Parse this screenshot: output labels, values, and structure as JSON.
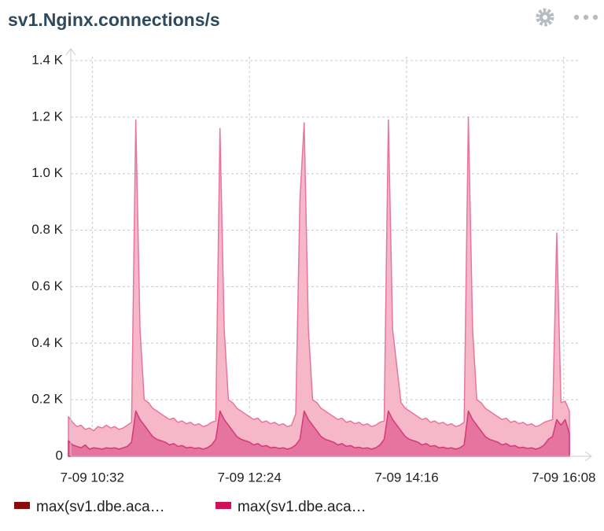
{
  "chart_data": {
    "type": "area",
    "title": "sv1.Nginx.connections/s",
    "x": [
      "7-09 10:15",
      "7-09 10:18",
      "7-09 10:21",
      "7-09 10:24",
      "7-09 10:27",
      "7-09 10:30",
      "7-09 10:33",
      "7-09 10:36",
      "7-09 10:39",
      "7-09 10:42",
      "7-09 10:45",
      "7-09 10:48",
      "7-09 10:51",
      "7-09 10:54",
      "7-09 10:57",
      "7-09 11:00",
      "7-09 11:03",
      "7-09 11:06",
      "7-09 11:09",
      "7-09 11:12",
      "7-09 11:15",
      "7-09 11:18",
      "7-09 11:21",
      "7-09 11:24",
      "7-09 11:27",
      "7-09 11:30",
      "7-09 11:33",
      "7-09 11:36",
      "7-09 11:39",
      "7-09 11:42",
      "7-09 11:45",
      "7-09 11:48",
      "7-09 11:51",
      "7-09 11:54",
      "7-09 11:57",
      "7-09 12:00",
      "7-09 12:03",
      "7-09 12:06",
      "7-09 12:09",
      "7-09 12:12",
      "7-09 12:15",
      "7-09 12:18",
      "7-09 12:21",
      "7-09 12:24",
      "7-09 12:27",
      "7-09 12:30",
      "7-09 12:33",
      "7-09 12:36",
      "7-09 12:39",
      "7-09 12:42",
      "7-09 12:45",
      "7-09 12:48",
      "7-09 12:51",
      "7-09 12:54",
      "7-09 12:57",
      "7-09 13:00",
      "7-09 13:03",
      "7-09 13:06",
      "7-09 13:09",
      "7-09 13:12",
      "7-09 13:15",
      "7-09 13:18",
      "7-09 13:21",
      "7-09 13:24",
      "7-09 13:27",
      "7-09 13:30",
      "7-09 13:33",
      "7-09 13:36",
      "7-09 13:39",
      "7-09 13:42",
      "7-09 13:45",
      "7-09 13:48",
      "7-09 13:51",
      "7-09 13:54",
      "7-09 13:57",
      "7-09 14:00",
      "7-09 14:03",
      "7-09 14:06",
      "7-09 14:09",
      "7-09 14:12",
      "7-09 14:15",
      "7-09 14:18",
      "7-09 14:21",
      "7-09 14:24",
      "7-09 14:27",
      "7-09 14:30",
      "7-09 14:33",
      "7-09 14:36",
      "7-09 14:39",
      "7-09 14:42",
      "7-09 14:45",
      "7-09 14:48",
      "7-09 14:51",
      "7-09 14:54",
      "7-09 14:57",
      "7-09 15:00",
      "7-09 15:03",
      "7-09 15:06",
      "7-09 15:09",
      "7-09 15:12",
      "7-09 15:15",
      "7-09 15:18",
      "7-09 15:21",
      "7-09 15:24",
      "7-09 15:27",
      "7-09 15:30",
      "7-09 15:33",
      "7-09 15:36",
      "7-09 15:39",
      "7-09 15:42",
      "7-09 15:45",
      "7-09 15:48",
      "7-09 15:51",
      "7-09 15:54",
      "7-09 15:57",
      "7-09 16:00",
      "7-09 16:03",
      "7-09 16:06",
      "7-09 16:09",
      "7-09 16:12"
    ],
    "series": [
      {
        "name": "max(sv1.dbe.aca…",
        "color": "#8b0a0a",
        "values": [
          140,
          120,
          105,
          110,
          95,
          100,
          90,
          105,
          100,
          110,
          100,
          105,
          95,
          100,
          110,
          120,
          1190,
          450,
          200,
          190,
          170,
          160,
          150,
          140,
          130,
          135,
          120,
          125,
          115,
          120,
          110,
          115,
          105,
          110,
          120,
          125,
          1160,
          450,
          200,
          190,
          170,
          160,
          150,
          140,
          130,
          135,
          120,
          125,
          115,
          120,
          110,
          115,
          105,
          110,
          150,
          910,
          1180,
          450,
          200,
          190,
          170,
          160,
          150,
          140,
          130,
          135,
          120,
          125,
          115,
          120,
          110,
          115,
          105,
          110,
          120,
          125,
          1190,
          450,
          320,
          190,
          170,
          160,
          150,
          140,
          130,
          135,
          120,
          125,
          115,
          120,
          110,
          115,
          105,
          110,
          120,
          1200,
          450,
          200,
          190,
          170,
          160,
          150,
          140,
          130,
          135,
          120,
          125,
          115,
          120,
          110,
          115,
          105,
          110,
          120,
          125,
          130,
          790,
          190,
          195,
          160
        ]
      },
      {
        "name": "max(sv1.dbe.aca…",
        "color": "#d0105a",
        "values": [
          55,
          40,
          35,
          30,
          40,
          25,
          30,
          28,
          25,
          30,
          28,
          30,
          25,
          30,
          35,
          50,
          160,
          130,
          110,
          90,
          70,
          60,
          55,
          50,
          40,
          45,
          35,
          38,
          30,
          32,
          28,
          30,
          25,
          30,
          40,
          60,
          160,
          130,
          110,
          90,
          70,
          60,
          55,
          50,
          40,
          45,
          35,
          38,
          30,
          32,
          28,
          30,
          25,
          30,
          40,
          60,
          160,
          130,
          110,
          90,
          70,
          60,
          55,
          50,
          40,
          45,
          35,
          38,
          30,
          32,
          28,
          30,
          25,
          30,
          40,
          60,
          160,
          130,
          110,
          90,
          70,
          60,
          55,
          50,
          40,
          45,
          35,
          38,
          30,
          32,
          28,
          30,
          25,
          30,
          40,
          160,
          130,
          110,
          90,
          70,
          60,
          55,
          50,
          40,
          45,
          35,
          38,
          30,
          32,
          28,
          30,
          25,
          30,
          40,
          60,
          70,
          130,
          110,
          130,
          80
        ]
      }
    ],
    "xlim": [
      "7-09 10:15",
      "7-09 16:12"
    ],
    "xticks": [
      "7-09 10:32",
      "7-09 12:24",
      "7-09 14:16",
      "7-09 16:08"
    ],
    "ylim": [
      0,
      1400
    ],
    "yticks": [
      0,
      {
        "value": 200,
        "label": "0.2 K"
      },
      {
        "value": 400,
        "label": "0.4 K"
      },
      {
        "value": 600,
        "label": "0.6 K"
      },
      {
        "value": 800,
        "label": "0.8 K"
      },
      {
        "value": 1000,
        "label": "1.0 K"
      },
      {
        "value": 1200,
        "label": "1.2 K"
      },
      {
        "value": 1400,
        "label": "1.4 K"
      }
    ],
    "grid": true
  }
}
